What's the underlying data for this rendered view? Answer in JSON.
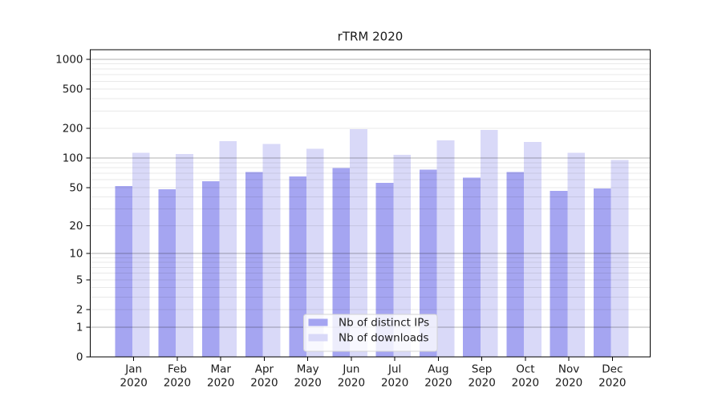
{
  "chart_data": {
    "type": "bar",
    "title": "rTRM 2020",
    "categories": [
      "Jan",
      "Feb",
      "Mar",
      "Apr",
      "May",
      "Jun",
      "Jul",
      "Aug",
      "Sep",
      "Oct",
      "Nov",
      "Dec"
    ],
    "category_year_label": "2020",
    "series": [
      {
        "name": "Nb of distinct IPs",
        "color": "#a5a5f1",
        "values": [
          52,
          48,
          58,
          72,
          65,
          79,
          56,
          76,
          63,
          72,
          46,
          49
        ]
      },
      {
        "name": "Nb of downloads",
        "color": "#d9d9f8",
        "values": [
          113,
          110,
          149,
          139,
          124,
          197,
          108,
          152,
          194,
          146,
          113,
          96
        ]
      }
    ],
    "yaxis": {
      "scale": "symlog",
      "ticks": [
        0,
        1,
        2,
        5,
        10,
        20,
        50,
        100,
        200,
        500,
        1000
      ],
      "tick_labels": [
        "0",
        "1",
        "2",
        "5",
        "10",
        "20",
        "50",
        "100",
        "200",
        "500",
        "1000"
      ],
      "major_gridline_values": [
        1,
        10,
        100,
        1000
      ],
      "minor_gridline_values": [
        2,
        3,
        4,
        5,
        6,
        7,
        8,
        9,
        20,
        30,
        40,
        50,
        60,
        70,
        80,
        90,
        200,
        300,
        400,
        500,
        600,
        700,
        800,
        900
      ],
      "ylim": [
        0,
        1250
      ]
    },
    "xlabel": "",
    "ylabel": "",
    "grid": true,
    "legend": {
      "position": "inside-bottom-center",
      "entries": [
        "Nb of distinct IPs",
        "Nb of downloads"
      ]
    },
    "colors": {
      "axis": "#000000",
      "major_grid": "rgba(0,0,0,0.30)",
      "minor_grid": "rgba(0,0,0,0.085)",
      "legend_border": "#d4d4d4",
      "legend_background": "rgba(255,255,255,0.8)"
    }
  }
}
